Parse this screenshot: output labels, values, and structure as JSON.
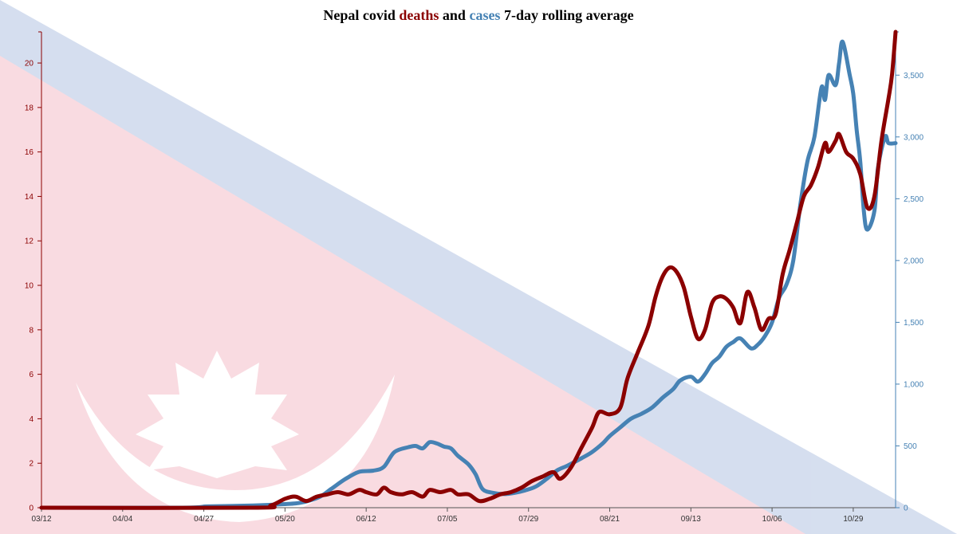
{
  "chart_data": {
    "type": "line",
    "title": {
      "prefix": "Nepal covid ",
      "deaths_word": "deaths",
      "middle": " and ",
      "cases_word": "cases",
      "suffix": " 7-day rolling average"
    },
    "x_ticks": [
      "03/12",
      "04/04",
      "04/27",
      "05/20",
      "06/12",
      "07/05",
      "07/29",
      "08/21",
      "09/13",
      "10/06",
      "10/29"
    ],
    "x_tick_day_index": [
      0,
      23,
      46,
      69,
      92,
      115,
      138,
      161,
      184,
      207,
      230
    ],
    "x_last_day_index": 242,
    "y_left": {
      "ticks": [
        0,
        2,
        4,
        6,
        8,
        10,
        12,
        14,
        16,
        18,
        20
      ],
      "lim": [
        0,
        21.4
      ]
    },
    "y_right": {
      "ticks": [
        "0",
        "500",
        "1,000",
        "1,500",
        "2,000",
        "2,500",
        "3,000",
        "3,500"
      ],
      "tick_values": [
        0,
        500,
        1000,
        1500,
        2000,
        2500,
        3000,
        3500
      ],
      "lim": [
        0,
        3850
      ]
    },
    "series": [
      {
        "name": "deaths",
        "color": "#8b0000",
        "axis": "left",
        "points": [
          [
            0,
            0
          ],
          [
            60,
            0
          ],
          [
            65,
            0.1
          ],
          [
            69,
            0.4
          ],
          [
            72,
            0.5
          ],
          [
            75,
            0.3
          ],
          [
            78,
            0.5
          ],
          [
            81,
            0.6
          ],
          [
            84,
            0.7
          ],
          [
            87,
            0.6
          ],
          [
            90,
            0.8
          ],
          [
            92,
            0.7
          ],
          [
            95,
            0.6
          ],
          [
            97,
            0.9
          ],
          [
            99,
            0.7
          ],
          [
            102,
            0.6
          ],
          [
            105,
            0.7
          ],
          [
            108,
            0.5
          ],
          [
            110,
            0.8
          ],
          [
            113,
            0.7
          ],
          [
            116,
            0.8
          ],
          [
            118,
            0.6
          ],
          [
            121,
            0.6
          ],
          [
            124,
            0.3
          ],
          [
            127,
            0.4
          ],
          [
            130,
            0.6
          ],
          [
            133,
            0.7
          ],
          [
            136,
            0.9
          ],
          [
            139,
            1.2
          ],
          [
            142,
            1.4
          ],
          [
            145,
            1.6
          ],
          [
            147,
            1.3
          ],
          [
            150,
            1.8
          ],
          [
            153,
            2.7
          ],
          [
            156,
            3.6
          ],
          [
            158,
            4.3
          ],
          [
            161,
            4.2
          ],
          [
            164,
            4.5
          ],
          [
            166,
            5.8
          ],
          [
            169,
            7.0
          ],
          [
            172,
            8.2
          ],
          [
            174,
            9.5
          ],
          [
            176,
            10.4
          ],
          [
            178,
            10.8
          ],
          [
            180,
            10.6
          ],
          [
            182,
            9.9
          ],
          [
            184,
            8.6
          ],
          [
            186,
            7.6
          ],
          [
            188,
            8.0
          ],
          [
            190,
            9.2
          ],
          [
            192,
            9.5
          ],
          [
            194,
            9.4
          ],
          [
            196,
            9.0
          ],
          [
            198,
            8.3
          ],
          [
            200,
            9.7
          ],
          [
            202,
            9.0
          ],
          [
            204,
            8.0
          ],
          [
            206,
            8.5
          ],
          [
            208,
            8.7
          ],
          [
            210,
            10.5
          ],
          [
            212,
            11.6
          ],
          [
            214,
            12.8
          ],
          [
            216,
            14.0
          ],
          [
            218,
            14.5
          ],
          [
            220,
            15.3
          ],
          [
            222,
            16.4
          ],
          [
            223,
            16.0
          ],
          [
            225,
            16.5
          ],
          [
            226,
            16.8
          ],
          [
            228,
            16.0
          ],
          [
            230,
            15.7
          ],
          [
            232,
            15.0
          ],
          [
            234,
            13.5
          ],
          [
            236,
            14.0
          ],
          [
            238,
            16.5
          ],
          [
            240,
            18.4
          ],
          [
            241,
            19.5
          ],
          [
            242,
            21.4
          ]
        ]
      },
      {
        "name": "cases",
        "color": "#4682b4",
        "axis": "right",
        "points": [
          [
            0,
            0
          ],
          [
            40,
            0
          ],
          [
            47,
            10
          ],
          [
            60,
            18
          ],
          [
            66,
            25
          ],
          [
            72,
            35
          ],
          [
            75,
            50
          ],
          [
            79,
            90
          ],
          [
            82,
            150
          ],
          [
            86,
            230
          ],
          [
            90,
            290
          ],
          [
            94,
            300
          ],
          [
            97,
            330
          ],
          [
            100,
            450
          ],
          [
            104,
            490
          ],
          [
            106,
            500
          ],
          [
            108,
            480
          ],
          [
            110,
            530
          ],
          [
            112,
            520
          ],
          [
            114,
            495
          ],
          [
            116,
            480
          ],
          [
            118,
            420
          ],
          [
            121,
            350
          ],
          [
            123,
            270
          ],
          [
            125,
            150
          ],
          [
            128,
            120
          ],
          [
            131,
            110
          ],
          [
            134,
            120
          ],
          [
            137,
            140
          ],
          [
            140,
            170
          ],
          [
            143,
            230
          ],
          [
            146,
            300
          ],
          [
            149,
            340
          ],
          [
            153,
            400
          ],
          [
            156,
            450
          ],
          [
            159,
            520
          ],
          [
            161,
            580
          ],
          [
            164,
            650
          ],
          [
            167,
            720
          ],
          [
            170,
            760
          ],
          [
            173,
            810
          ],
          [
            176,
            890
          ],
          [
            179,
            960
          ],
          [
            181,
            1030
          ],
          [
            184,
            1060
          ],
          [
            186,
            1020
          ],
          [
            188,
            1080
          ],
          [
            190,
            1170
          ],
          [
            192,
            1220
          ],
          [
            194,
            1300
          ],
          [
            196,
            1340
          ],
          [
            198,
            1370
          ],
          [
            201,
            1290
          ],
          [
            203,
            1320
          ],
          [
            205,
            1390
          ],
          [
            207,
            1500
          ],
          [
            209,
            1700
          ],
          [
            211,
            1800
          ],
          [
            213,
            2000
          ],
          [
            215,
            2450
          ],
          [
            217,
            2800
          ],
          [
            219,
            3000
          ],
          [
            221,
            3400
          ],
          [
            222,
            3300
          ],
          [
            223,
            3500
          ],
          [
            225,
            3420
          ],
          [
            226,
            3600
          ],
          [
            227,
            3770
          ],
          [
            229,
            3500
          ],
          [
            230,
            3350
          ],
          [
            231,
            3050
          ],
          [
            232,
            2800
          ],
          [
            233,
            2400
          ],
          [
            234,
            2250
          ],
          [
            236,
            2400
          ],
          [
            237,
            2750
          ],
          [
            239,
            3000
          ],
          [
            240,
            2950
          ],
          [
            242,
            2950
          ]
        ]
      }
    ]
  }
}
